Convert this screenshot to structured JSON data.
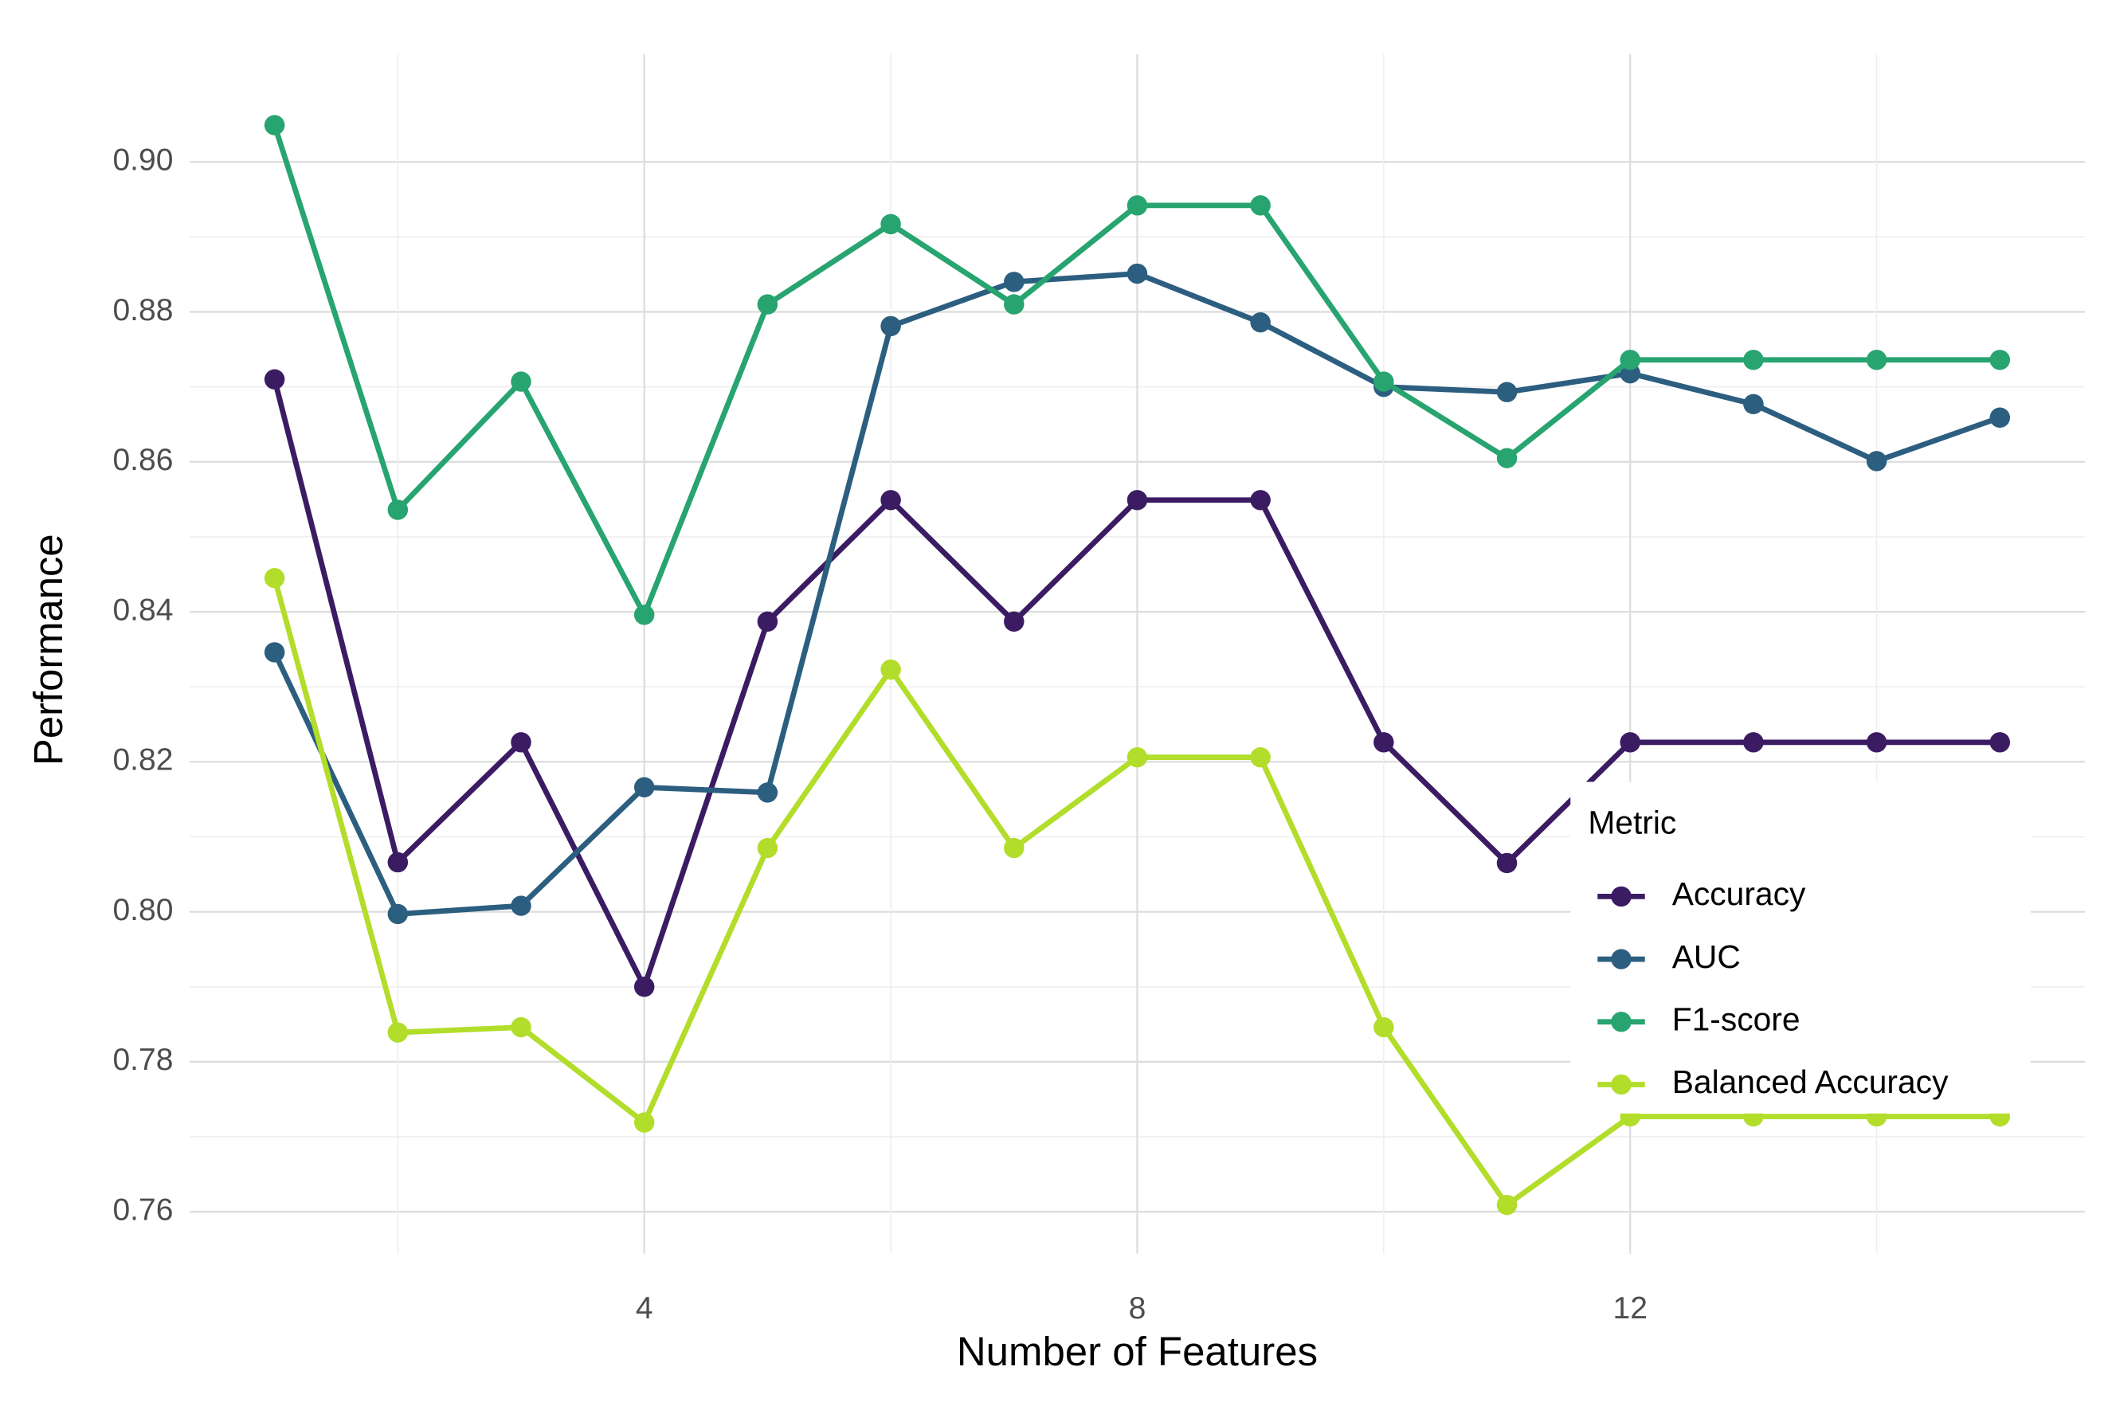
{
  "chart_data": {
    "type": "line",
    "x_label": "Number of Features",
    "y_label": "Performance",
    "legend_title": "Metric",
    "legend_position": "right",
    "grid": true,
    "x": [
      1,
      2,
      3,
      4,
      5,
      6,
      7,
      8,
      9,
      10,
      11,
      12,
      13,
      14,
      15
    ],
    "xlim": [
      0.31,
      15.69
    ],
    "xticks": [
      4,
      8,
      12
    ],
    "ylim": [
      0.7544,
      0.9144
    ],
    "yticks": [
      {
        "value": 0.76,
        "label": "0.76"
      },
      {
        "value": 0.78,
        "label": "0.78"
      },
      {
        "value": 0.8,
        "label": "0.80"
      },
      {
        "value": 0.82,
        "label": "0.82"
      },
      {
        "value": 0.84,
        "label": "0.84"
      },
      {
        "value": 0.86,
        "label": "0.86"
      },
      {
        "value": 0.88,
        "label": "0.88"
      },
      {
        "value": 0.9,
        "label": "0.90"
      }
    ],
    "series": [
      {
        "name": "Accuracy",
        "color": "#3b1c63",
        "values": [
          0.871,
          0.8066,
          0.8226,
          0.79,
          0.8387,
          0.8549,
          0.8387,
          0.8549,
          0.8549,
          0.8226,
          0.8065,
          0.8226,
          0.8226,
          0.8226,
          0.8226
        ]
      },
      {
        "name": "AUC",
        "color": "#2c5e80",
        "values": [
          0.8346,
          0.7997,
          0.8008,
          0.8166,
          0.8159,
          0.8781,
          0.884,
          0.8851,
          0.8786,
          0.87,
          0.8693,
          0.8718,
          0.8677,
          0.8601,
          0.8659
        ]
      },
      {
        "name": "F1-score",
        "color": "#27a46f",
        "values": [
          0.9049,
          0.8536,
          0.8707,
          0.8396,
          0.881,
          0.8917,
          0.881,
          0.8942,
          0.8942,
          0.8707,
          0.8605,
          0.8736,
          0.8736,
          0.8736,
          0.8736
        ]
      },
      {
        "name": "Balanced Accuracy",
        "color": "#b2dd2a",
        "values": [
          0.8445,
          0.7839,
          0.7846,
          0.7719,
          0.8085,
          0.8323,
          0.8085,
          0.8206,
          0.8206,
          0.7846,
          0.7609,
          0.7727,
          0.7727,
          0.7727,
          0.7727
        ]
      }
    ]
  }
}
